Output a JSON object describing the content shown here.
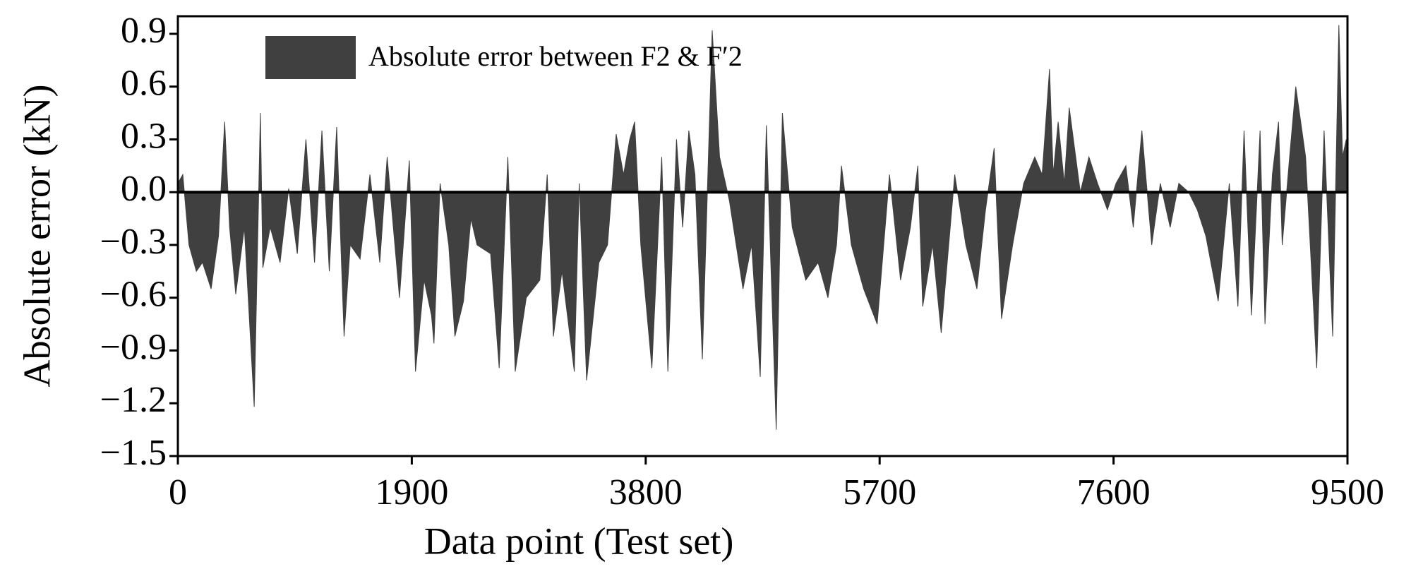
{
  "chart_data": {
    "type": "area",
    "xlabel": "Data point (Test set)",
    "ylabel": "Absolute error (kN)",
    "xlim": [
      0,
      9500
    ],
    "xticks": [
      0,
      1900,
      3800,
      5700,
      7600,
      9500
    ],
    "ylim": [
      -1.5,
      1.0
    ],
    "yticks": [
      0.9,
      0.6,
      0.3,
      {
        "value": 0,
        "label": "0.0"
      },
      {
        "value": -0.3,
        "label": "−0.3"
      },
      {
        "value": -0.6,
        "label": "−0.6"
      },
      {
        "value": -0.9,
        "label": "−0.9"
      },
      {
        "value": -1.2,
        "label": "−1.2"
      },
      {
        "value": -1.5,
        "label": "−1.5"
      }
    ],
    "legend": "upper left",
    "series": [
      {
        "name": "Absolute error between F2 & F′2",
        "color": "#404040",
        "x": [
          0,
          40,
          90,
          150,
          200,
          270,
          330,
          380,
          420,
          470,
          540,
          620,
          670,
          690,
          750,
          830,
          900,
          970,
          1040,
          1110,
          1170,
          1230,
          1290,
          1350,
          1400,
          1480,
          1560,
          1640,
          1700,
          1800,
          1880,
          1930,
          2000,
          2060,
          2080,
          2130,
          2200,
          2250,
          2320,
          2380,
          2430,
          2540,
          2610,
          2680,
          2740,
          2830,
          2940,
          3000,
          3050,
          3120,
          3220,
          3260,
          3320,
          3420,
          3490,
          3560,
          3620,
          3670,
          3710,
          3760,
          3850,
          3930,
          3980,
          4050,
          4100,
          4150,
          4200,
          4260,
          4340,
          4400,
          4480,
          4590,
          4660,
          4730,
          4780,
          4860,
          4910,
          4990,
          5100,
          5200,
          5280,
          5350,
          5390,
          5470,
          5570,
          5680,
          5780,
          5870,
          5950,
          6010,
          6050,
          6130,
          6200,
          6310,
          6400,
          6490,
          6560,
          6630,
          6690,
          6780,
          6870,
          6960,
          7020,
          7080,
          7110,
          7150,
          7200,
          7240,
          7330,
          7400,
          7470,
          7550,
          7620,
          7700,
          7760,
          7830,
          7910,
          7980,
          8060,
          8130,
          8210,
          8280,
          8350,
          8450,
          8540,
          8610,
          8660,
          8720,
          8790,
          8830,
          8890,
          8940,
          8970,
          9030,
          9080,
          9160,
          9250,
          9310,
          9380,
          9430,
          9460,
          9490,
          9500
        ],
        "values": [
          0.05,
          0.1,
          -0.3,
          -0.45,
          -0.4,
          -0.55,
          -0.25,
          0.4,
          -0.2,
          -0.58,
          -0.2,
          -1.22,
          0.45,
          -0.43,
          -0.2,
          -0.4,
          0.02,
          -0.35,
          0.3,
          -0.4,
          0.35,
          -0.45,
          0.37,
          -0.82,
          -0.3,
          -0.38,
          0.1,
          -0.4,
          0.2,
          -0.6,
          0.18,
          -1.02,
          -0.5,
          -0.7,
          -0.86,
          0.05,
          -0.3,
          -0.82,
          -0.62,
          -0.15,
          -0.3,
          -0.35,
          -1.0,
          0.2,
          -1.02,
          -0.6,
          -0.5,
          0.1,
          -0.82,
          -0.45,
          -1.02,
          0.05,
          -1.07,
          -0.4,
          -0.3,
          0.33,
          0.1,
          0.3,
          0.4,
          -0.3,
          -1.0,
          0.2,
          -1.02,
          0.3,
          -0.2,
          0.35,
          0.1,
          -0.95,
          0.92,
          0.2,
          -0.05,
          -0.55,
          -0.3,
          -1.05,
          0.38,
          -1.35,
          0.45,
          -0.2,
          -0.5,
          -0.4,
          -0.6,
          -0.3,
          0.15,
          -0.3,
          -0.55,
          -0.75,
          0.1,
          -0.5,
          -0.2,
          0.15,
          -0.65,
          -0.3,
          -0.8,
          0.1,
          -0.3,
          -0.55,
          -0.1,
          0.25,
          -0.72,
          -0.3,
          0.05,
          0.2,
          0.1,
          0.7,
          0.1,
          0.4,
          0.05,
          0.48,
          0.0,
          0.2,
          0.05,
          -0.1,
          0.05,
          0.15,
          -0.2,
          0.35,
          -0.3,
          0.05,
          -0.2,
          0.05,
          0.0,
          -0.1,
          -0.25,
          -0.62,
          0.05,
          -0.65,
          0.35,
          -0.7,
          0.35,
          -0.75,
          0.1,
          0.4,
          -0.3,
          0.2,
          0.6,
          0.2,
          -1.0,
          0.35,
          -0.82,
          0.95,
          0.2,
          0.3,
          0.1
        ]
      }
    ]
  }
}
